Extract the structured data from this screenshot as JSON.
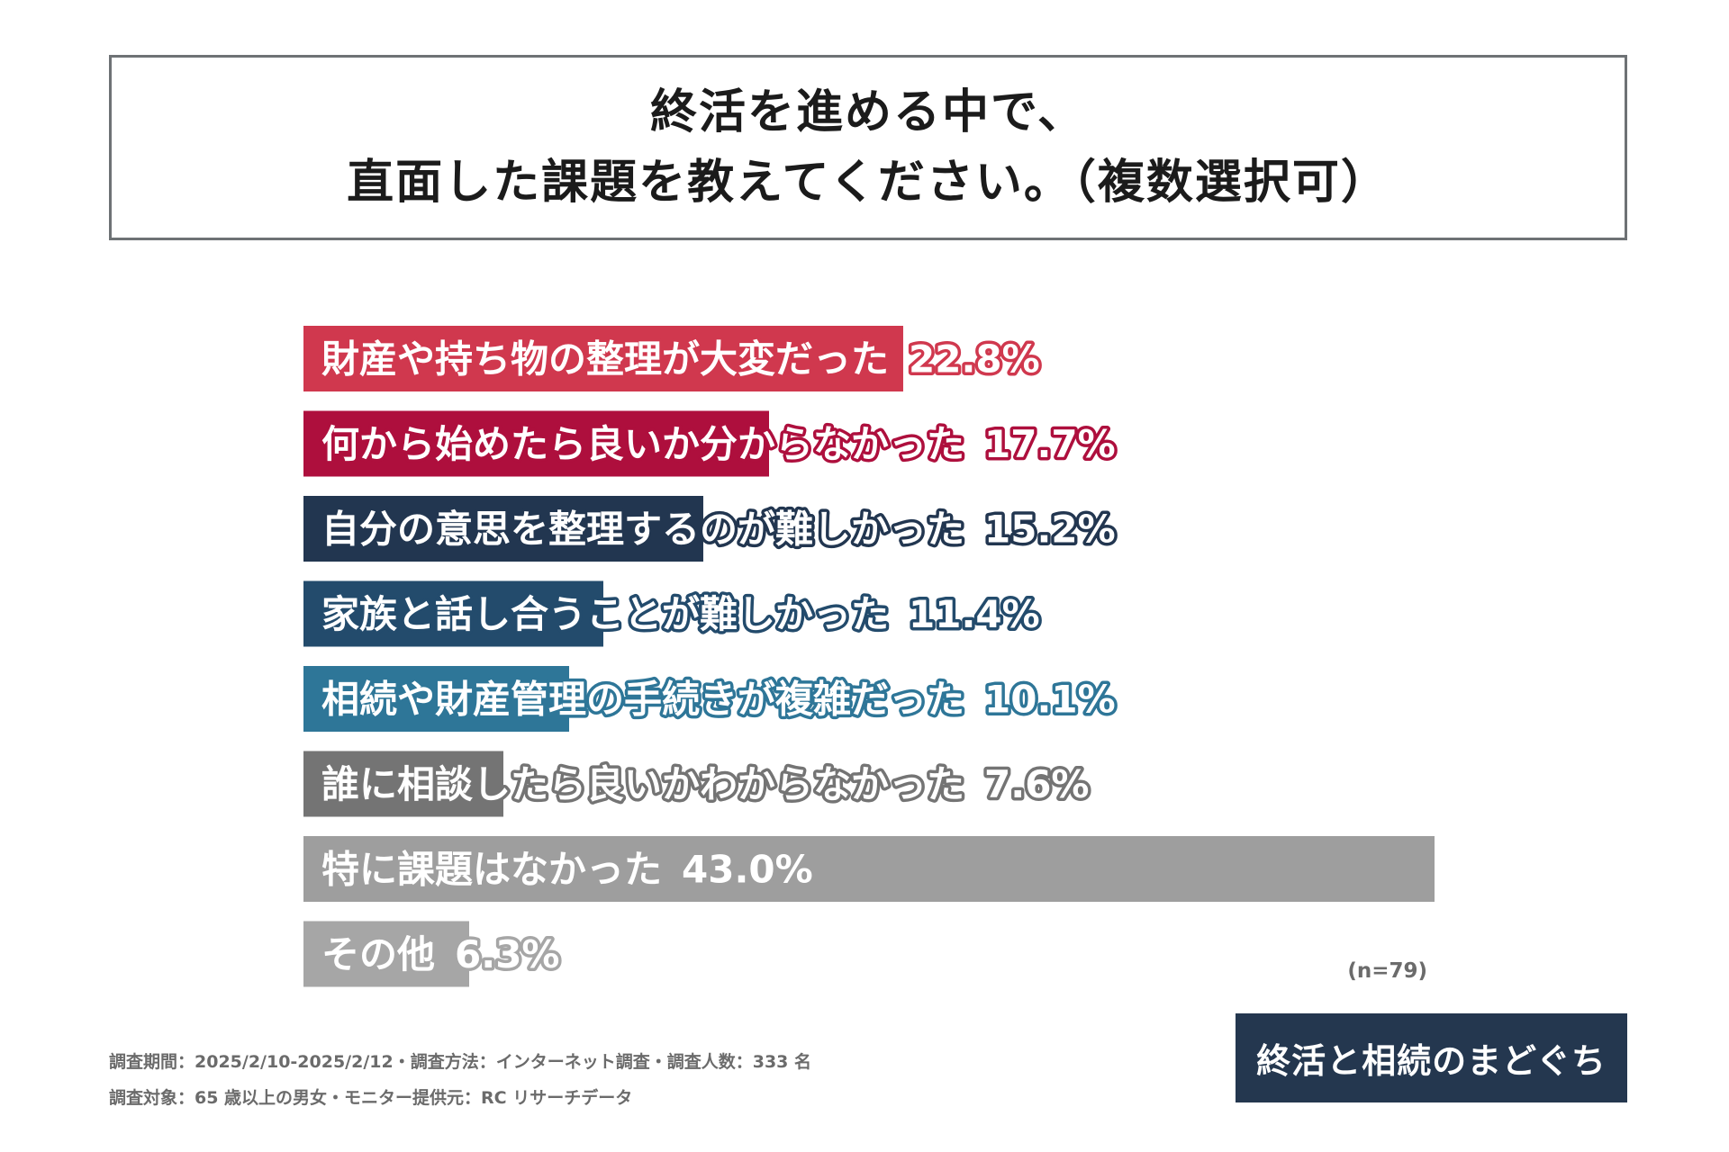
{
  "title": {
    "line1": "終活を進める中で、",
    "line2": "直面した課題を教えてください。（複数選択可）"
  },
  "chart_data": {
    "type": "bar",
    "orientation": "horizontal",
    "categories": [
      "財産や持ち物の整理が大変だった",
      "何から始めたら良いか分からなかった",
      "自分の意思を整理するのが難しかった",
      "家族と話し合うことが難しかった",
      "相続や財産管理の手続きが複雑だった",
      "誰に相談したら良いかわからなかった",
      "特に課題はなかった",
      "その他"
    ],
    "values": [
      22.8,
      17.7,
      15.2,
      11.4,
      10.1,
      7.6,
      43.0,
      6.3
    ],
    "value_labels": [
      "22.8%",
      "17.7%",
      "15.2%",
      "11.4%",
      "10.1%",
      "7.6%",
      "43.0%",
      "6.3%"
    ],
    "colors": [
      "#d0384e",
      "#ae0f3d",
      "#223650",
      "#234b6c",
      "#2e7698",
      "#747474",
      "#9e9e9e",
      "#a6a6a6"
    ],
    "xlim": [
      0,
      43.0
    ],
    "grid": false,
    "legend": "none"
  },
  "sample_note": "(n=79)",
  "footnotes": {
    "line1": "調査期間：2025/2/10-2025/2/12・調査方法：インターネット調査・調査人数：333 名",
    "line2": "調査対象：65 歳以上の男女・モニター提供元：RC リサーチデータ"
  },
  "logo": {
    "text": "終活と相続のまどぐち",
    "bg_color": "#24374f",
    "accent_color": "#c9344b"
  }
}
